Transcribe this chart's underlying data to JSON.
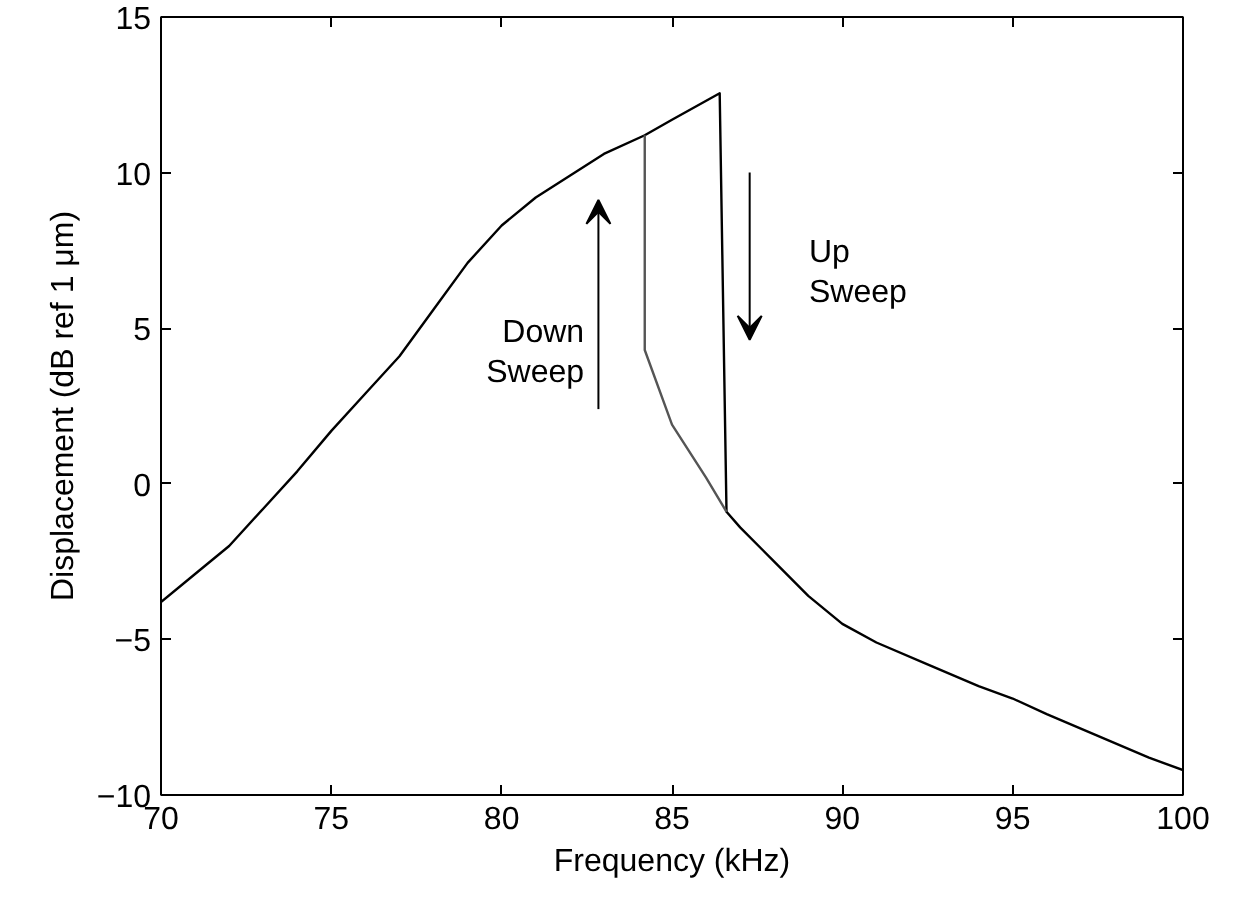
{
  "chart_data": {
    "type": "line",
    "xlabel": "Frequency (kHz)",
    "ylabel": "Displacement (dB ref 1 μm)",
    "xlim": [
      70,
      100
    ],
    "ylim": [
      -10,
      15
    ],
    "xticks": [
      70,
      75,
      80,
      85,
      90,
      95,
      100
    ],
    "yticks": [
      -10,
      -5,
      0,
      5,
      10,
      15
    ],
    "grid": false,
    "series": [
      {
        "color": "#000000",
        "x": [
          70,
          71,
          72,
          73,
          74,
          75,
          76,
          77,
          78,
          79,
          80,
          81,
          82,
          83,
          84.2,
          85,
          86.4,
          86.6,
          87,
          88,
          89,
          90,
          91,
          92.5,
          94,
          95,
          96,
          97.5,
          99,
          100
        ],
        "values": [
          -3.8,
          -2.9,
          -2.0,
          -0.8,
          0.4,
          1.7,
          2.9,
          4.1,
          5.6,
          7.1,
          8.3,
          9.2,
          9.9,
          10.6,
          11.2,
          11.7,
          12.55,
          -0.9,
          -1.4,
          -2.5,
          -3.6,
          -4.5,
          -5.1,
          -5.8,
          -6.5,
          -6.9,
          -7.4,
          -8.1,
          -8.8,
          -9.2
        ]
      },
      {
        "color": "#555555",
        "x": [
          84.2,
          84.2,
          85,
          86,
          86.6
        ],
        "values": [
          11.2,
          4.3,
          1.9,
          0.2,
          -0.9
        ]
      }
    ],
    "annotations": [
      "Down\nSweep",
      "Up\nSweep"
    ]
  }
}
